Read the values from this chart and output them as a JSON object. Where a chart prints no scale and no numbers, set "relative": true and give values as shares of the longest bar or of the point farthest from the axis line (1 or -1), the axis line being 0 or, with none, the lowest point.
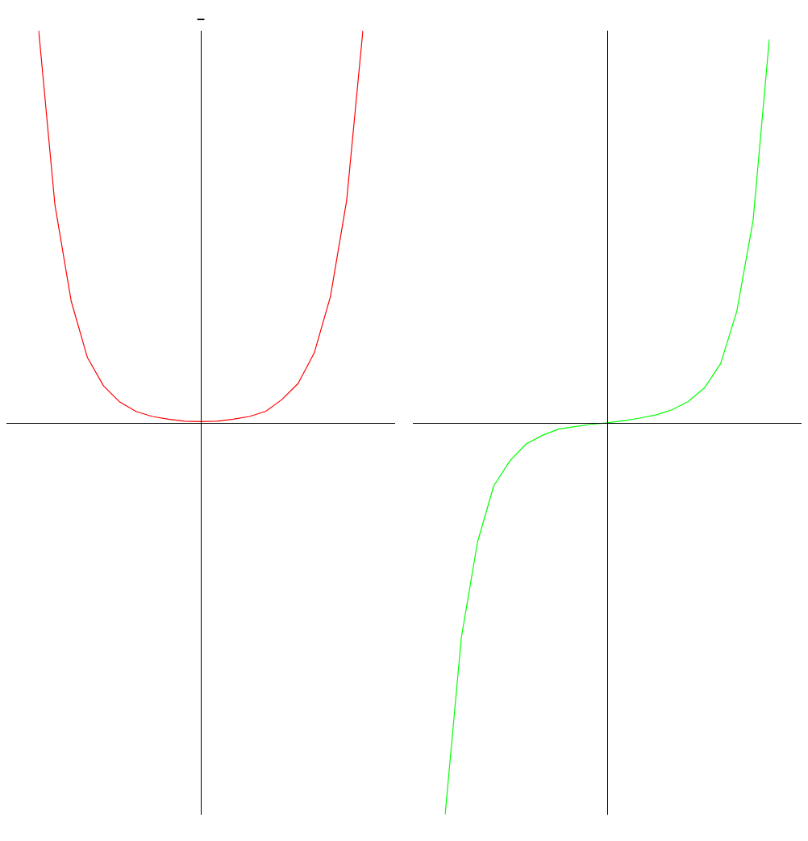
{
  "chart_data": [
    {
      "type": "line",
      "title": "–",
      "relative": true,
      "marker": "none",
      "categories": [
        null,
        null,
        null,
        null,
        null,
        null,
        null,
        null,
        null,
        null,
        null,
        null,
        null,
        null,
        null,
        null,
        null,
        null,
        null,
        null,
        null
      ],
      "series": [
        {
          "color": "#ff0000",
          "values": [
            1,
            0.556,
            0.311,
            0.167,
            0.094,
            0.053,
            0.029,
            0.016,
            0.009,
            0.004,
            0.003,
            0.004,
            0.009,
            0.016,
            0.029,
            0.059,
            0.1,
            0.178,
            0.322,
            0.567,
            1
          ]
        }
      ]
    },
    {
      "type": "line",
      "relative": true,
      "marker": "none",
      "categories": [
        null,
        null,
        null,
        null,
        null,
        null,
        null,
        null,
        null,
        null,
        null,
        null,
        null,
        null,
        null,
        null,
        null,
        null,
        null,
        null,
        null
      ],
      "series": [
        {
          "color": "#00ff00",
          "values": [
            -1,
            -0.548,
            -0.304,
            -0.161,
            -0.097,
            -0.054,
            -0.032,
            -0.016,
            -0.01,
            -0.004,
            0,
            0.005,
            0.012,
            0.02,
            0.033,
            0.054,
            0.089,
            0.151,
            0.285,
            0.516,
            0.978
          ]
        }
      ]
    }
  ]
}
